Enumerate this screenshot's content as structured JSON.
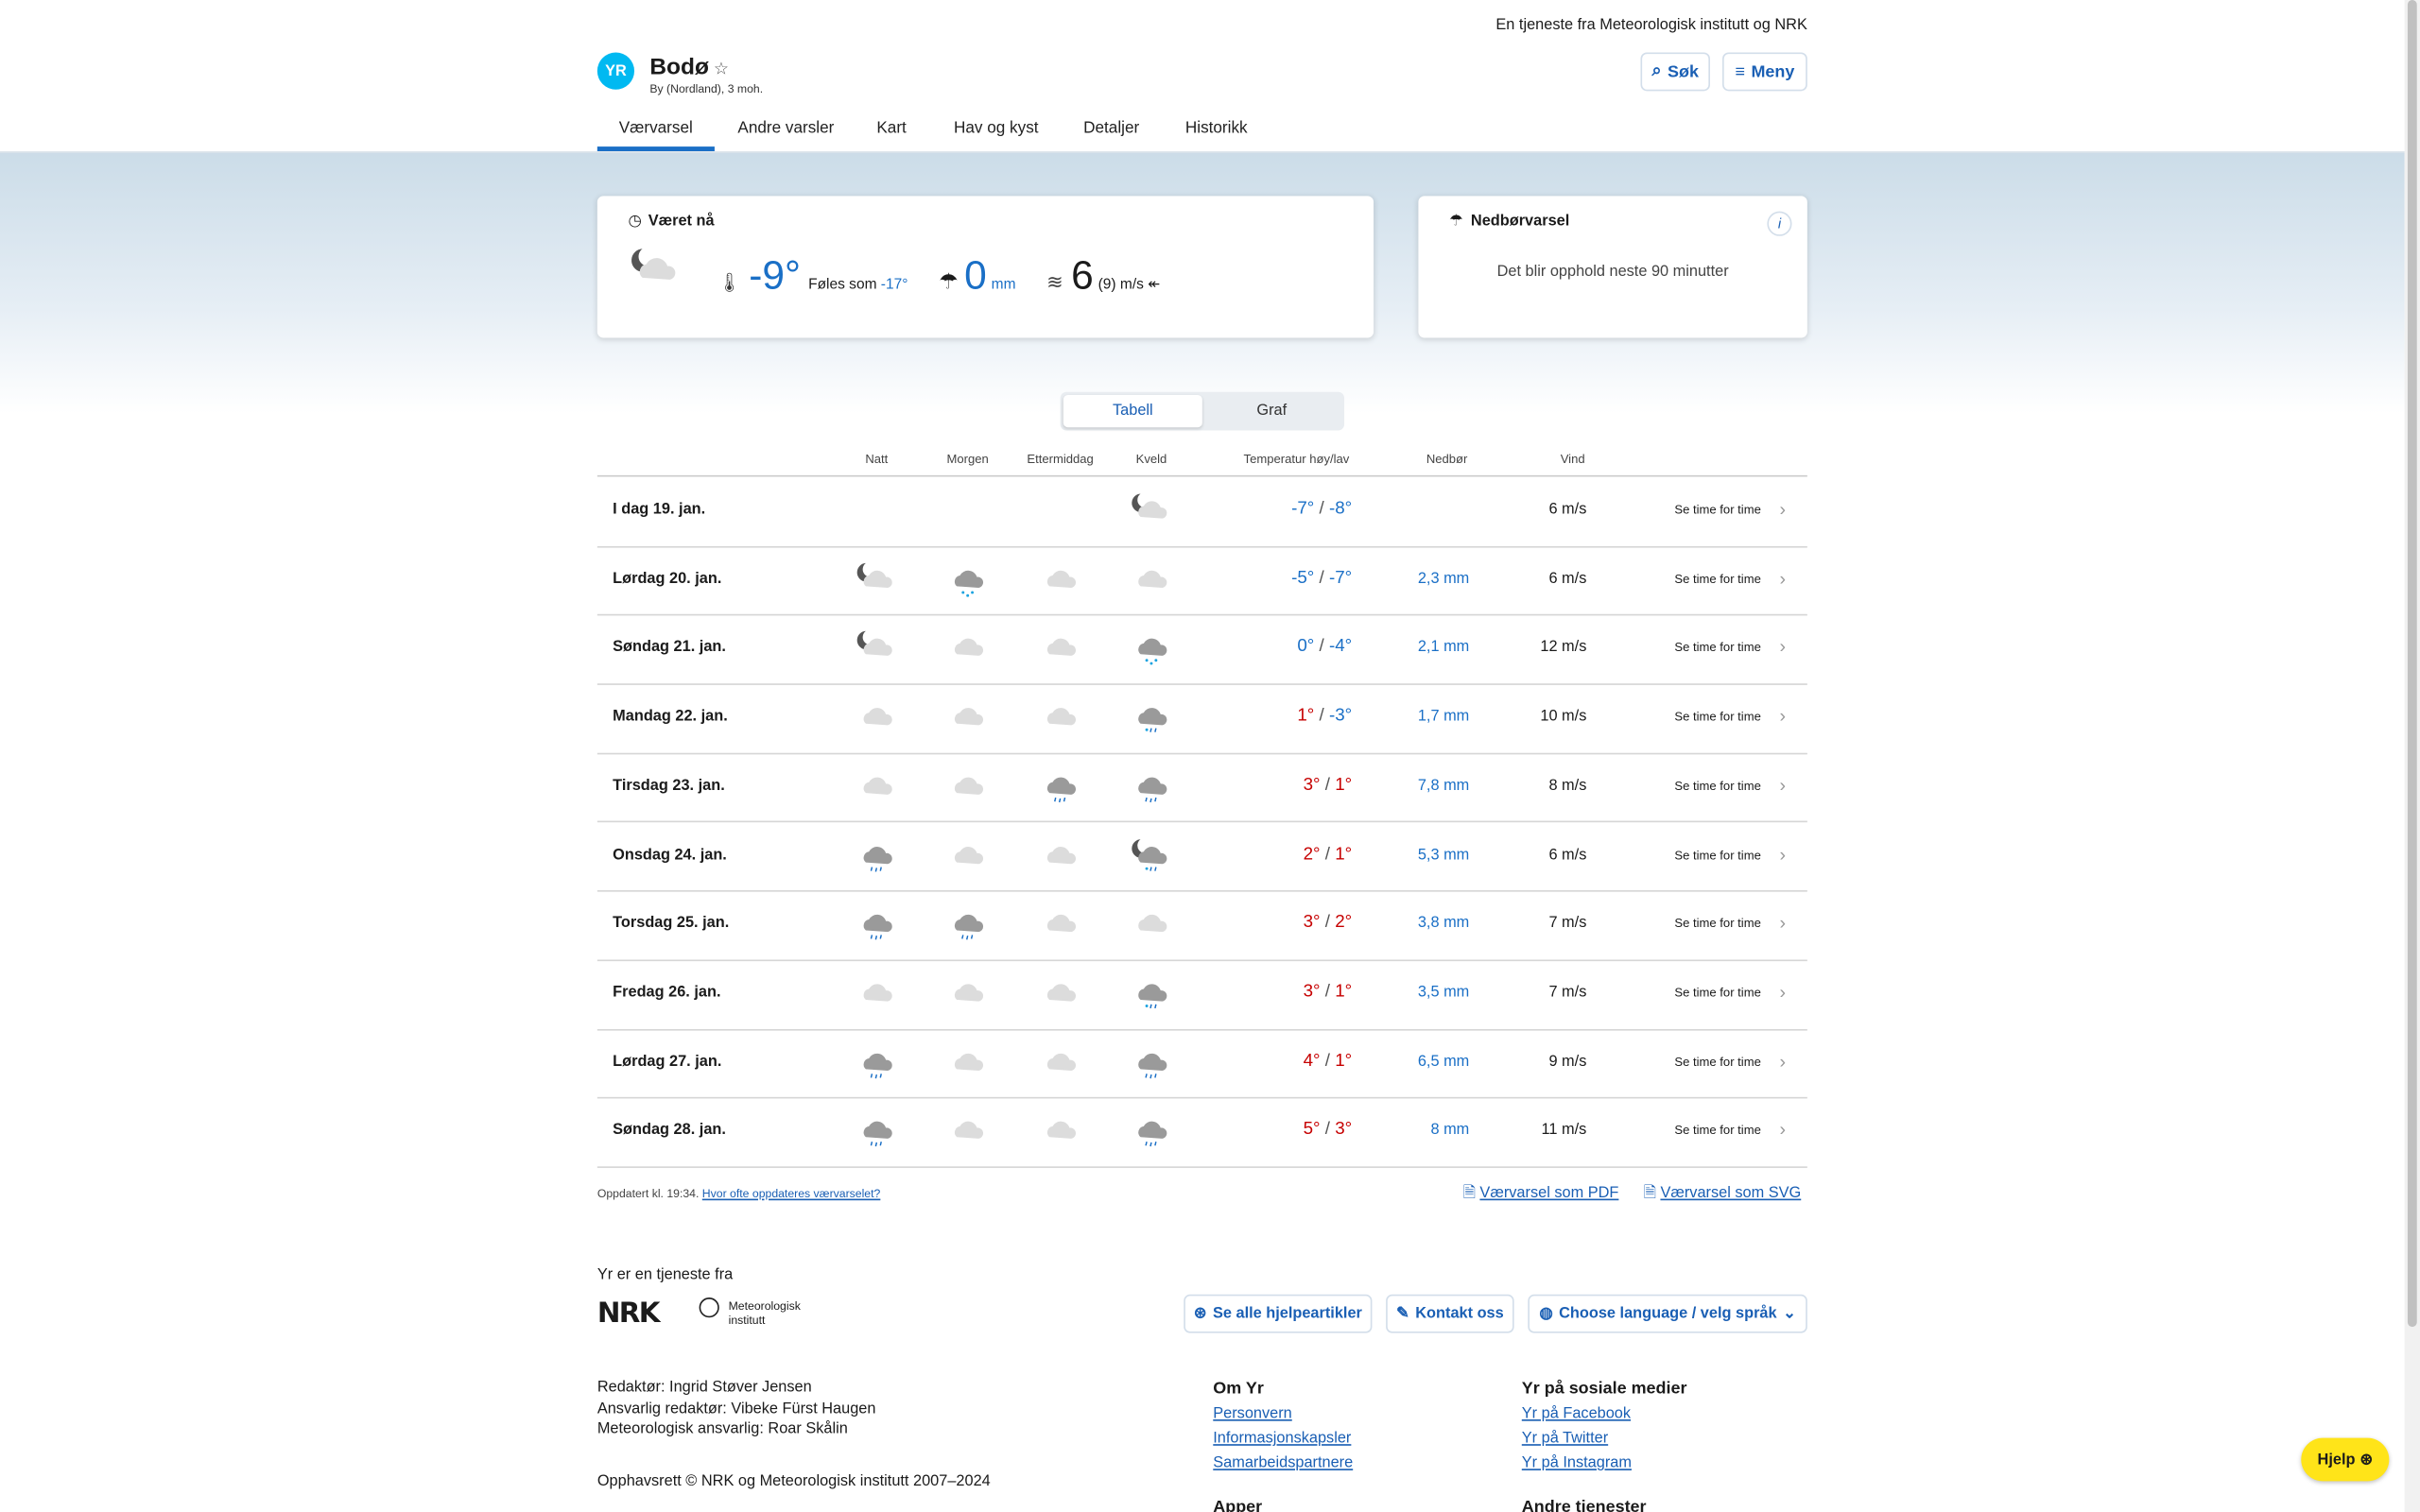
{
  "header": {
    "tagline": "En tjeneste fra Meteorologisk institutt og NRK",
    "logo": "YR",
    "location": "Bodø",
    "subtitle": "By (Nordland), 3 moh.",
    "search_label": "Søk",
    "menu_label": "Meny"
  },
  "nav": {
    "tabs": [
      {
        "label": "Værvarsel",
        "active": true
      },
      {
        "label": "Andre varsler"
      },
      {
        "label": "Kart"
      },
      {
        "label": "Hav og kyst"
      },
      {
        "label": "Detaljer"
      },
      {
        "label": "Historikk"
      }
    ]
  },
  "now": {
    "title": "Været nå",
    "icon": "partly-cloudy-night",
    "temperature": "-9°",
    "feels_label": "Føles som",
    "feels": "-17°",
    "precip": "0",
    "precip_unit": "mm",
    "wind": "6",
    "gust": "(9)",
    "wind_unit": "m/s",
    "wind_dir_icon": "arrow-left-icon"
  },
  "nowcast": {
    "title": "Nedbørvarsel",
    "text": "Det blir opphold neste 90 minutter",
    "info": "i"
  },
  "toggle": {
    "options": [
      "Tabell",
      "Graf"
    ],
    "selected": "Tabell"
  },
  "table": {
    "headers": {
      "natt": "Natt",
      "morgen": "Morgen",
      "ettermiddag": "Ettermiddag",
      "kveld": "Kveld",
      "temp": "Temperatur høy/lav",
      "precip": "Nedbør",
      "wind": "Vind"
    },
    "link_label": "Se time for time",
    "rows": [
      {
        "date": "I dag 19. jan.",
        "icons": [
          "",
          "",
          "",
          "partly-cloudy-night"
        ],
        "high": "-7°",
        "low": "-8°",
        "precip": "",
        "wind": "6 m/s"
      },
      {
        "date": "Lørdag 20. jan.",
        "icons": [
          "moon-cloud",
          "snow",
          "cloud",
          "cloud"
        ],
        "high": "-5°",
        "low": "-7°",
        "precip": "2,3 mm",
        "wind": "6 m/s"
      },
      {
        "date": "Søndag 21. jan.",
        "icons": [
          "moon-cloud",
          "cloud",
          "cloud",
          "snow"
        ],
        "high": "0°",
        "low": "-4°",
        "precip": "2,1 mm",
        "wind": "12 m/s"
      },
      {
        "date": "Mandag 22. jan.",
        "icons": [
          "cloud",
          "cloud",
          "cloud",
          "sleet"
        ],
        "high": "1°",
        "low": "-3°",
        "precip": "1,7 mm",
        "wind": "10 m/s"
      },
      {
        "date": "Tirsdag 23. jan.",
        "icons": [
          "cloud",
          "cloud",
          "rain",
          "rain"
        ],
        "high": "3°",
        "low": "1°",
        "precip": "7,8 mm",
        "wind": "8 m/s"
      },
      {
        "date": "Onsdag 24. jan.",
        "icons": [
          "rain",
          "cloud",
          "cloud",
          "moon-sleet"
        ],
        "high": "2°",
        "low": "1°",
        "precip": "5,3 mm",
        "wind": "6 m/s"
      },
      {
        "date": "Torsdag 25. jan.",
        "icons": [
          "rain",
          "rain",
          "cloud",
          "cloud"
        ],
        "high": "3°",
        "low": "2°",
        "precip": "3,8 mm",
        "wind": "7 m/s"
      },
      {
        "date": "Fredag 26. jan.",
        "icons": [
          "cloud",
          "cloud",
          "cloud",
          "sleet"
        ],
        "high": "3°",
        "low": "1°",
        "precip": "3,5 mm",
        "wind": "7 m/s"
      },
      {
        "date": "Lørdag 27. jan.",
        "icons": [
          "rain",
          "cloud",
          "cloud",
          "rain"
        ],
        "high": "4°",
        "low": "1°",
        "precip": "6,5 mm",
        "wind": "9 m/s"
      },
      {
        "date": "Søndag 28. jan.",
        "icons": [
          "rain",
          "cloud",
          "cloud",
          "rain"
        ],
        "high": "5°",
        "low": "3°",
        "precip": "8 mm",
        "wind": "11 m/s"
      }
    ]
  },
  "updated": {
    "text": "Oppdatert kl. 19:34.",
    "link": "Hvor ofte oppdateres værvarselet?",
    "pdf": "Værvarsel som PDF",
    "svg": "Værvarsel som SVG"
  },
  "footer": {
    "service_from": "Yr er en tjeneste fra",
    "nrk_logo": "NRK",
    "met_logo": "Meteorologisk institutt",
    "help_articles": "Se alle hjelpeartikler",
    "contact": "Kontakt oss",
    "language": "Choose language / velg språk",
    "credits": [
      "Redaktør: Ingrid Støver Jensen",
      "Ansvarlig redaktør: Vibeke Fürst Haugen",
      "Meteorologisk ansvarlig: Roar Skålin"
    ],
    "copyright": "Opphavsrett © NRK og Meteorologisk institutt 2007–2024",
    "om_yr": {
      "title": "Om Yr",
      "links": [
        "Personvern",
        "Informasjonskapsler",
        "Samarbeidspartnere"
      ]
    },
    "social": {
      "title": "Yr på sosiale medier",
      "links": [
        "Yr på Facebook",
        "Yr på Twitter",
        "Yr på Instagram"
      ]
    },
    "apps_title": "Apper",
    "other_title": "Andre tjenester",
    "help_button": "Hjelp"
  },
  "colors": {
    "accent": "#1a5fb4",
    "cold": "#1a6fc6",
    "warm": "#c60000",
    "help": "#ffe419",
    "logo": "#00b9f1"
  }
}
